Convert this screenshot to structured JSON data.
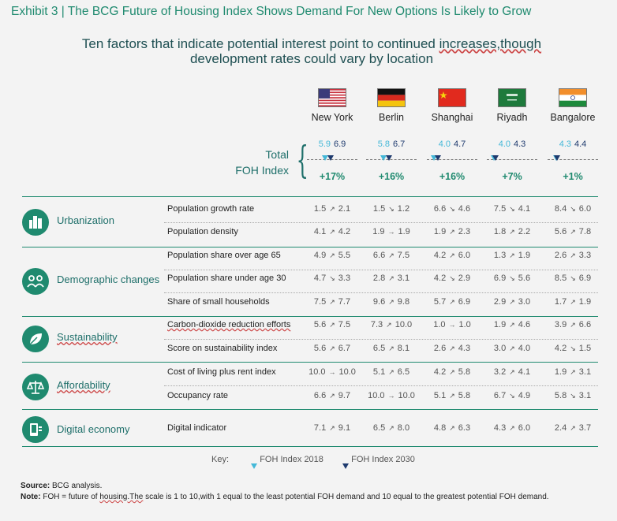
{
  "exhibit_title": "Exhibit 3 | The BCG Future of Housing Index Shows Demand For New Options Is Likely to Grow",
  "subtitle_line1_pre": "Ten factors that indicate potential interest point to continued ",
  "subtitle_line1_u": "increases,though",
  "subtitle_line2": "development rates could vary by location",
  "cities": [
    {
      "name": "New York",
      "flag": "us-flag-icon",
      "foh2018": "5.9",
      "foh2030": "6.9",
      "change": "+17%"
    },
    {
      "name": "Berlin",
      "flag": "germany-flag-icon",
      "foh2018": "5.8",
      "foh2030": "6.7",
      "change": "+16%"
    },
    {
      "name": "Shanghai",
      "flag": "china-flag-icon",
      "foh2018": "4.0",
      "foh2030": "4.7",
      "change": "+16%"
    },
    {
      "name": "Riyadh",
      "flag": "saudi-flag-icon",
      "foh2018": "4.0",
      "foh2030": "4.3",
      "change": "+7%"
    },
    {
      "name": "Bangalore",
      "flag": "india-flag-icon",
      "foh2018": "4.3",
      "foh2030": "4.4",
      "change": "+1%"
    }
  ],
  "total_label_line1": "Total",
  "total_label_line2": "FOH Index",
  "categories": [
    {
      "label": "Urbanization",
      "icon": "city-icon"
    },
    {
      "label": "Demographic changes",
      "icon": "people-icon"
    },
    {
      "label": "Sustainability",
      "icon": "leaf-icon"
    },
    {
      "label": "Affordability",
      "icon": "scale-icon"
    },
    {
      "label": "Digital economy",
      "icon": "digital-icon"
    }
  ],
  "factors": [
    {
      "name": "Population growth rate",
      "values": [
        [
          "1.5",
          "2.1"
        ],
        [
          "1.5",
          "1.2"
        ],
        [
          "6.6",
          "4.6"
        ],
        [
          "7.5",
          "4.1"
        ],
        [
          "8.4",
          "6.0"
        ]
      ]
    },
    {
      "name": "Population density",
      "values": [
        [
          "4.1",
          "4.2"
        ],
        [
          "1.9",
          "1.9"
        ],
        [
          "1.9",
          "2.3"
        ],
        [
          "1.8",
          "2.2"
        ],
        [
          "5.6",
          "7.8"
        ]
      ]
    },
    {
      "name": "Population share over age 65",
      "values": [
        [
          "4.9",
          "5.5"
        ],
        [
          "6.6",
          "7.5"
        ],
        [
          "4.2",
          "6.0"
        ],
        [
          "1.3",
          "1.9"
        ],
        [
          "2.6",
          "3.3"
        ]
      ]
    },
    {
      "name": "Population share under age 30",
      "values": [
        [
          "4.7",
          "3.3"
        ],
        [
          "2.8",
          "3.1"
        ],
        [
          "4.2",
          "2.9"
        ],
        [
          "6.9",
          "5.6"
        ],
        [
          "8.5",
          "6.9"
        ]
      ]
    },
    {
      "name": "Share of small households",
      "values": [
        [
          "7.5",
          "7.7"
        ],
        [
          "9.6",
          "9.8"
        ],
        [
          "5.7",
          "6.9"
        ],
        [
          "2.9",
          "3.0"
        ],
        [
          "1.7",
          "1.9"
        ]
      ]
    },
    {
      "name": "Carbon-dioxide reduction efforts",
      "values": [
        [
          "5.6",
          "7.5"
        ],
        [
          "7.3",
          "10.0"
        ],
        [
          "1.0",
          "1.0"
        ],
        [
          "1.9",
          "4.6"
        ],
        [
          "3.9",
          "6.6"
        ]
      ]
    },
    {
      "name": "Score on sustainability index",
      "values": [
        [
          "5.6",
          "6.7"
        ],
        [
          "6.5",
          "8.1"
        ],
        [
          "2.6",
          "4.3"
        ],
        [
          "3.0",
          "4.0"
        ],
        [
          "4.2",
          "1.5"
        ]
      ]
    },
    {
      "name": "Cost of living plus rent index",
      "values": [
        [
          "10.0",
          "10.0"
        ],
        [
          "5.1",
          "6.5"
        ],
        [
          "4.2",
          "5.8"
        ],
        [
          "3.2",
          "4.1"
        ],
        [
          "1.9",
          "3.1"
        ]
      ]
    },
    {
      "name": "Occupancy rate",
      "values": [
        [
          "6.6",
          "9.7"
        ],
        [
          "10.0",
          "10.0"
        ],
        [
          "5.1",
          "5.8"
        ],
        [
          "6.7",
          "4.9"
        ],
        [
          "5.8",
          "3.1"
        ]
      ]
    },
    {
      "name": "Digital indicator",
      "values": [
        [
          "7.1",
          "9.1"
        ],
        [
          "6.5",
          "8.0"
        ],
        [
          "4.8",
          "6.3"
        ],
        [
          "4.3",
          "6.0"
        ],
        [
          "2.4",
          "3.7"
        ]
      ]
    }
  ],
  "key_label": "Key:",
  "key_2018": "FOH Index 2018",
  "key_2030": "FOH Index 2030",
  "source_bold": "Source:",
  "source_text": " BCG analysis.",
  "note_bold": "Note:",
  "note_pre": " FOH = future of ",
  "note_u": "housing.The",
  "note_post": " scale is 1 to 10,with 1 equal to the least potential FOH demand and 10 equal to the greatest potential FOH demand.",
  "colors": {
    "accent": "#1f8a6f",
    "index_2018": "#44b8d8",
    "index_2030": "#1e3a6e"
  }
}
